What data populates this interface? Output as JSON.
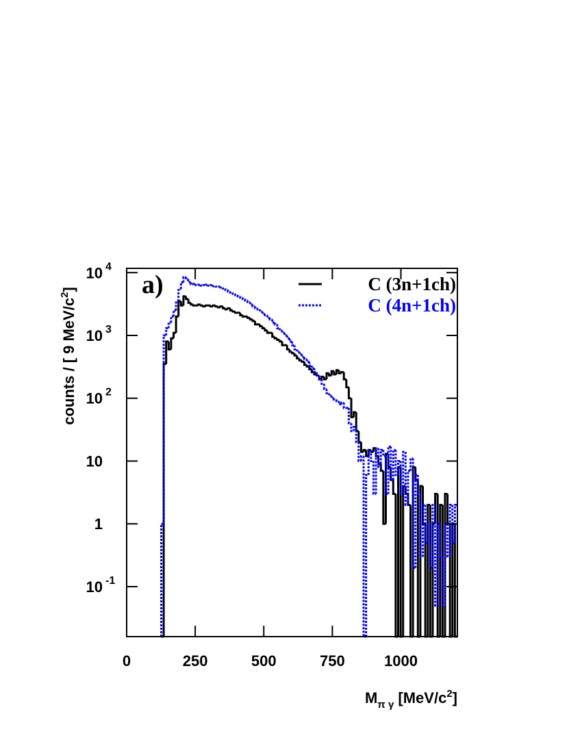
{
  "chart_data": {
    "type": "histogram",
    "annotation": "a)",
    "ylabel": {
      "text": "counts / [ 9 MeV/c",
      "sup": "2",
      "end": "]"
    },
    "xlabel": {
      "base": "M",
      "sub": "π γ",
      "text": " [MeV/c",
      "sup": "2",
      "end": "]"
    },
    "log_y": true,
    "legend": "upper right",
    "xlim": [
      0,
      1206
    ],
    "ylim": [
      0.016,
      11700
    ],
    "xticks": [
      0,
      250,
      500,
      750,
      1000
    ],
    "yticks": [
      {
        "value": 0.1,
        "label": "10",
        "sup": "-1"
      },
      1,
      10,
      {
        "value": 100,
        "label": "10",
        "sup": "2"
      },
      {
        "value": 1000,
        "label": "10",
        "sup": "3"
      },
      {
        "value": 10000,
        "label": "10",
        "sup": "4"
      }
    ],
    "bins": [
      126,
      135,
      144,
      153,
      162,
      171,
      180,
      189,
      198,
      207,
      216,
      225,
      234,
      243,
      252,
      261,
      270,
      279,
      288,
      297,
      306,
      315,
      324,
      333,
      342,
      351,
      360,
      369,
      378,
      387,
      396,
      405,
      414,
      423,
      432,
      441,
      450,
      459,
      468,
      477,
      486,
      495,
      504,
      513,
      522,
      531,
      540,
      549,
      558,
      567,
      576,
      585,
      594,
      603,
      612,
      621,
      630,
      639,
      648,
      657,
      666,
      675,
      684,
      693,
      702,
      711,
      720,
      729,
      738,
      747,
      756,
      765,
      774,
      783,
      792,
      801,
      810,
      819,
      828,
      837,
      846,
      855,
      864,
      873,
      882,
      891,
      900,
      909,
      918,
      927,
      936,
      945,
      954,
      963,
      972,
      981,
      990,
      999,
      1008,
      1017,
      1026,
      1035,
      1044,
      1053,
      1062,
      1071,
      1080,
      1089,
      1098,
      1107,
      1116,
      1125,
      1134,
      1143,
      1152,
      1161,
      1170,
      1179,
      1188,
      1197,
      1206
    ],
    "series": [
      {
        "name": "C (3n+1ch)",
        "color": "#000000",
        "dashed": false,
        "values": [
          0,
          350,
          800,
          600,
          900,
          1100,
          2000,
          3500,
          3000,
          4200,
          3800,
          3300,
          3100,
          3000,
          3000,
          3100,
          3000,
          2900,
          3000,
          3000,
          2900,
          3000,
          2900,
          2800,
          2900,
          2700,
          2600,
          2700,
          2500,
          2400,
          2300,
          2300,
          2100,
          2000,
          2000,
          1900,
          1800,
          1700,
          1500,
          1500,
          1400,
          1300,
          1200,
          1100,
          1100,
          950,
          900,
          850,
          800,
          700,
          700,
          600,
          550,
          520,
          480,
          430,
          400,
          380,
          340,
          320,
          290,
          260,
          240,
          230,
          200,
          220,
          200,
          250,
          230,
          270,
          240,
          280,
          250,
          260,
          200,
          150,
          100,
          50,
          60,
          30,
          20,
          14,
          15,
          12,
          15,
          14,
          16,
          12,
          9,
          7,
          1,
          13,
          8,
          5,
          3,
          0,
          8,
          0,
          4,
          3,
          2,
          0,
          8,
          5,
          0,
          4,
          1,
          0,
          2,
          0,
          1,
          3,
          0,
          2,
          0,
          3,
          1,
          0,
          1,
          0
        ]
      },
      {
        "name": "C (4n+1ch)",
        "color": "#0000ff",
        "dashed": true,
        "values": [
          1,
          1000,
          1300,
          1600,
          2000,
          2500,
          3500,
          5500,
          7000,
          8500,
          7800,
          7000,
          6500,
          6600,
          6300,
          6400,
          6200,
          6300,
          6400,
          6200,
          6300,
          6100,
          6000,
          6000,
          5800,
          5600,
          5300,
          5000,
          4800,
          4600,
          4400,
          4200,
          4000,
          3800,
          3600,
          3400,
          3100,
          2900,
          2700,
          2600,
          2400,
          2200,
          2100,
          1900,
          1800,
          1600,
          1500,
          1300,
          1200,
          1100,
          1000,
          900,
          800,
          700,
          600,
          550,
          500,
          450,
          420,
          380,
          330,
          300,
          260,
          230,
          200,
          170,
          140,
          120,
          110,
          100,
          95,
          90,
          80,
          85,
          70,
          70,
          40,
          30,
          35,
          20,
          10,
          12,
          0,
          6,
          15,
          10,
          3,
          16,
          8,
          15,
          12,
          3,
          17,
          5,
          15,
          6,
          10,
          3,
          14,
          2,
          7,
          11,
          0.2,
          6,
          3,
          0.3,
          2,
          0.5,
          1,
          0.2,
          2,
          0.05,
          1,
          0.3,
          0.05,
          1,
          0.3,
          2,
          0.5,
          2
        ]
      }
    ]
  }
}
